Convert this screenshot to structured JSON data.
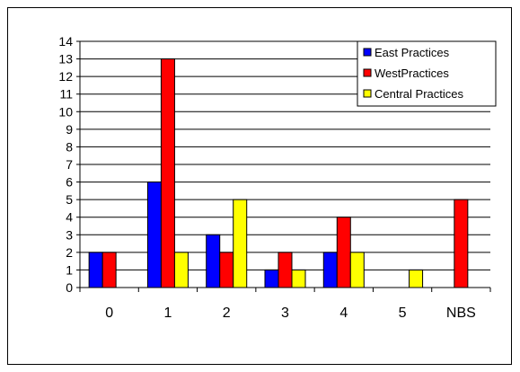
{
  "chart_data": {
    "type": "bar",
    "categories": [
      "0",
      "1",
      "2",
      "3",
      "4",
      "5",
      "NBS"
    ],
    "series": [
      {
        "name": "East Practices",
        "color": "#0000FF",
        "values": [
          2,
          6,
          3,
          1,
          2,
          0,
          0
        ]
      },
      {
        "name": "WestPractices",
        "color": "#FF0000",
        "values": [
          2,
          13,
          2,
          2,
          4,
          0,
          5
        ]
      },
      {
        "name": "Central Practices",
        "color": "#FFFF00",
        "values": [
          0,
          2,
          5,
          1,
          2,
          1,
          0
        ]
      }
    ],
    "title": "",
    "xlabel": "",
    "ylabel": "",
    "ylim": [
      0,
      14
    ],
    "yticks": [
      "0",
      "1",
      "2",
      "3",
      "4",
      "5",
      "6",
      "7",
      "8",
      "9",
      "10",
      "11",
      "12",
      "13",
      "14"
    ],
    "grid": true,
    "legend_position": "top-right"
  }
}
